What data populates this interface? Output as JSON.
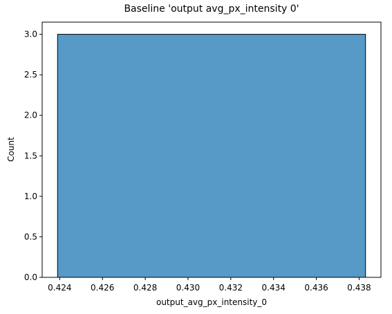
{
  "chart_data": {
    "type": "bar",
    "title": "Baseline 'output avg_px_intensity 0'",
    "xlabel": "output_avg_px_intensity_0",
    "ylabel": "Count",
    "bins": [
      {
        "x_start": 0.4239,
        "x_end": 0.4383,
        "count": 3.0
      }
    ],
    "xlim": [
      0.42318,
      0.43902
    ],
    "ylim": [
      0.0,
      3.15
    ],
    "x_ticks": [
      0.424,
      0.426,
      0.428,
      0.43,
      0.432,
      0.434,
      0.436,
      0.438
    ],
    "x_tick_labels": [
      "0.424",
      "0.426",
      "0.428",
      "0.430",
      "0.432",
      "0.434",
      "0.436",
      "0.438"
    ],
    "y_ticks": [
      0.0,
      0.5,
      1.0,
      1.5,
      2.0,
      2.5,
      3.0
    ],
    "y_tick_labels": [
      "0.0",
      "0.5",
      "1.0",
      "1.5",
      "2.0",
      "2.5",
      "3.0"
    ],
    "bar_color": "#5799c7",
    "bar_edge_color": "#000000",
    "grid": false,
    "legend": "none"
  }
}
